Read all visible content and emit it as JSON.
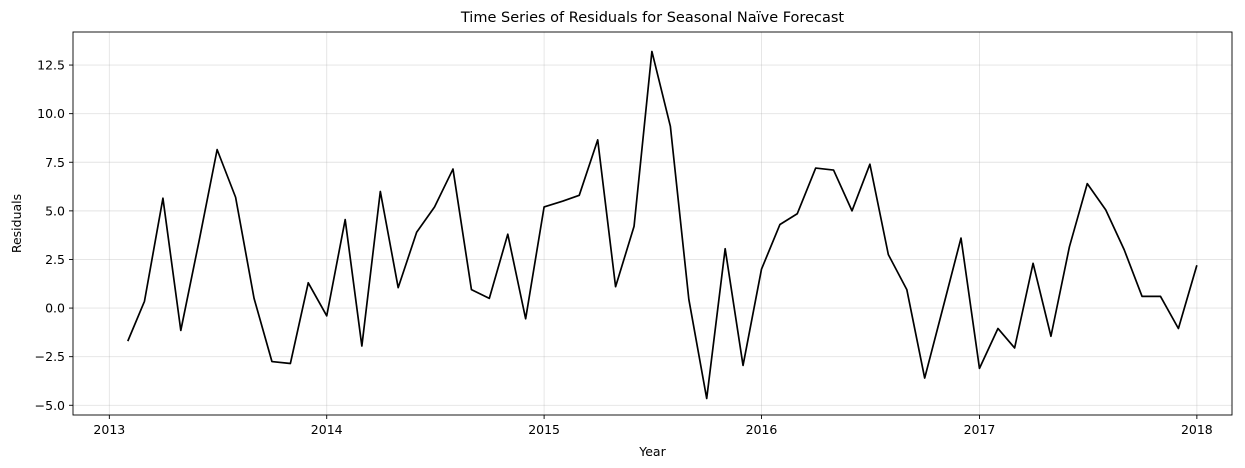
{
  "chart_data": {
    "type": "line",
    "title": "Time Series of Residuals for Seasonal Naïve Forecast",
    "xlabel": "Year",
    "ylabel": "Residuals",
    "xlim": [
      "2012-11-01",
      "2018-03-01"
    ],
    "ylim": [
      -5.5,
      14.2
    ],
    "x_ticks": [
      "2013-01-01",
      "2014-01-01",
      "2015-01-01",
      "2016-01-01",
      "2017-01-01",
      "2018-01-01"
    ],
    "x_tick_labels": [
      "2013",
      "2014",
      "2015",
      "2016",
      "2017",
      "2018"
    ],
    "y_ticks": [
      -5.0,
      -2.5,
      0.0,
      2.5,
      5.0,
      7.5,
      10.0,
      12.5
    ],
    "y_tick_labels": [
      "−5.0",
      "−2.5",
      "0.0",
      "2.5",
      "5.0",
      "7.5",
      "10.0",
      "12.5"
    ],
    "grid": true,
    "series": [
      {
        "color": "#000000",
        "x": [
          "2013-02-01",
          "2013-03-01",
          "2013-04-01",
          "2013-05-01",
          "2013-06-01",
          "2013-07-01",
          "2013-08-01",
          "2013-09-01",
          "2013-10-01",
          "2013-11-01",
          "2013-12-01",
          "2014-01-01",
          "2014-02-01",
          "2014-03-01",
          "2014-04-01",
          "2014-05-01",
          "2014-06-01",
          "2014-07-01",
          "2014-08-01",
          "2014-09-01",
          "2014-10-01",
          "2014-11-01",
          "2014-12-01",
          "2015-01-01",
          "2015-02-01",
          "2015-03-01",
          "2015-04-01",
          "2015-05-01",
          "2015-06-01",
          "2015-07-01",
          "2015-08-01",
          "2015-09-01",
          "2015-10-01",
          "2015-11-01",
          "2015-12-01",
          "2016-01-01",
          "2016-02-01",
          "2016-03-01",
          "2016-04-01",
          "2016-05-01",
          "2016-06-01",
          "2016-07-01",
          "2016-08-01",
          "2016-09-01",
          "2016-10-01",
          "2016-11-01",
          "2016-12-01",
          "2017-01-01",
          "2017-02-01",
          "2017-03-01",
          "2017-04-01",
          "2017-05-01",
          "2017-06-01",
          "2017-07-01",
          "2017-08-01",
          "2017-09-01",
          "2017-10-01",
          "2017-11-01",
          "2017-12-01",
          "2018-01-01"
        ],
        "y": [
          -1.7,
          0.35,
          5.65,
          -1.15,
          3.5,
          8.15,
          5.7,
          0.5,
          -2.75,
          -2.85,
          1.3,
          -0.4,
          4.55,
          -1.95,
          6.0,
          1.05,
          3.9,
          5.2,
          7.15,
          0.95,
          0.5,
          3.8,
          -0.55,
          5.2,
          5.5,
          5.8,
          8.65,
          1.1,
          4.2,
          13.2,
          9.35,
          0.45,
          -4.65,
          3.05,
          -2.95,
          2.0,
          4.3,
          4.85,
          7.2,
          7.1,
          5.0,
          7.4,
          2.75,
          0.95,
          -3.6,
          0.05,
          3.6,
          -3.1,
          -1.05,
          -2.05,
          2.3,
          -1.45,
          3.15,
          6.4,
          5.05,
          3.0,
          0.6,
          0.6,
          -1.05,
          2.2
        ]
      }
    ]
  }
}
